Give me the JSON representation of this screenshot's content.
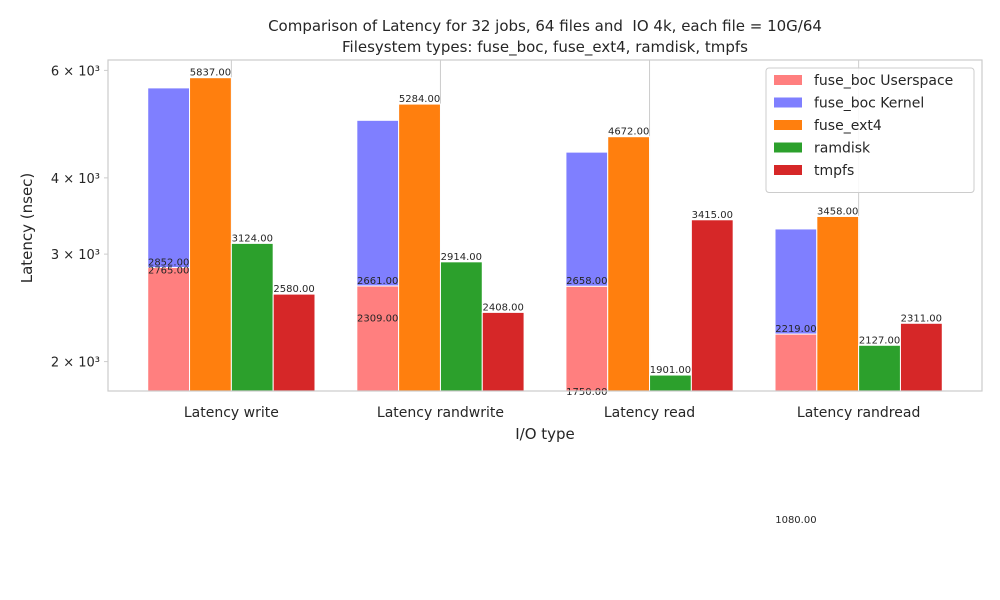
{
  "chart_data": {
    "type": "bar",
    "title": "Comparison of Latency for 32 jobs, 64 files and  IO 4k, each file = 10G/64",
    "subtitle": "Filesystem types: fuse_boc, fuse_ext4, ramdisk, tmpfs",
    "x_label": "I/O type",
    "y_label": "Latency (nsec)",
    "categories": [
      "Latency write",
      "Latency randwrite",
      "Latency read",
      "Latency randread"
    ],
    "series": [
      {
        "name": "fuse_boc Userspace",
        "color": "#ff7f7f",
        "stack": "fuse_boc",
        "values": [
          2852,
          2661,
          2658,
          2219
        ],
        "value_labels": [
          "2852.00",
          "2661.00",
          "2658.00",
          "2219.00"
        ]
      },
      {
        "name": "fuse_boc Kernel",
        "color": "#7f7fff",
        "stack": "fuse_boc",
        "values": [
          2765,
          2309,
          1750,
          1080
        ],
        "value_labels": [
          "2765.00",
          "2309.00",
          "1750.00",
          "1080.00"
        ]
      },
      {
        "name": "fuse_ext4",
        "color": "#ff7f0e",
        "values": [
          5837,
          5284,
          4672,
          3458
        ],
        "value_labels": [
          "5837.00",
          "5284.00",
          "4672.00",
          "3458.00"
        ]
      },
      {
        "name": "ramdisk",
        "color": "#2ca02c",
        "values": [
          3124,
          2914,
          1901,
          2127
        ],
        "value_labels": [
          "3124.00",
          "2914.00",
          "1901.00",
          "2127.00"
        ]
      },
      {
        "name": "tmpfs",
        "color": "#d62728",
        "values": [
          2580,
          2408,
          3415,
          2311
        ],
        "value_labels": [
          "2580.00",
          "2408.00",
          "3415.00",
          "2311.00"
        ]
      }
    ],
    "y_scale": "log",
    "ylim": [
      1790,
      6240
    ],
    "yticks": [
      {
        "value": 2000,
        "label": "2 × 10³"
      },
      {
        "value": 3000,
        "label": "3 × 10³"
      },
      {
        "value": 4000,
        "label": "4 × 10³"
      },
      {
        "value": 6000,
        "label": "6 × 10³"
      }
    ],
    "grid": true,
    "legend": "upper right"
  }
}
